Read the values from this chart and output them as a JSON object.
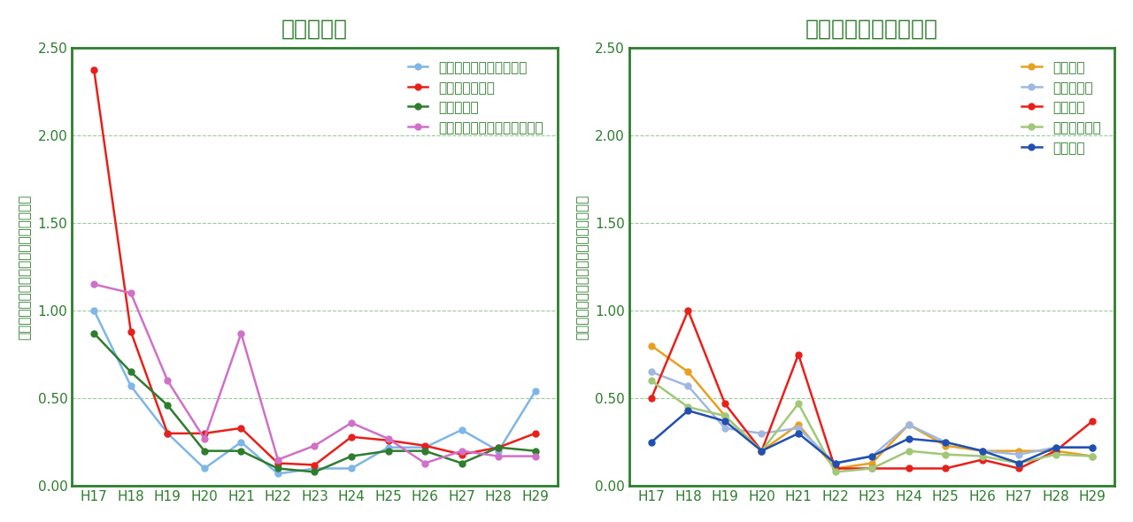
{
  "x_labels": [
    "H17",
    "H18",
    "H19",
    "H20",
    "H21",
    "H22",
    "H23",
    "H24",
    "H25",
    "H26",
    "H27",
    "H28",
    "H29"
  ],
  "left_title": "発生源周辺",
  "right_title": "バックグラウンド地域",
  "ylabel": "総繊維数濃度（本／Ｌ）（幾何平均値）",
  "ylim": [
    0.0,
    2.5
  ],
  "yticks": [
    0.0,
    0.5,
    1.0,
    1.5,
    2.0,
    2.5
  ],
  "left_series": {
    "旧石綿製品製造事業場等": {
      "color": "#7eb6e8",
      "values": [
        1.0,
        0.57,
        0.3,
        0.1,
        0.25,
        0.07,
        0.1,
        0.1,
        0.22,
        0.22,
        0.32,
        0.2,
        0.54
      ]
    },
    "廃棄物処分場等": {
      "color": "#e8201a",
      "values": [
        2.37,
        0.88,
        0.3,
        0.3,
        0.33,
        0.13,
        0.12,
        0.28,
        0.26,
        0.23,
        0.18,
        0.22,
        0.3
      ]
    },
    "蛇紋岩地域": {
      "color": "#2e7d2e",
      "values": [
        0.87,
        0.65,
        0.46,
        0.2,
        0.2,
        0.1,
        0.08,
        0.17,
        0.2,
        0.2,
        0.13,
        0.22,
        0.2
      ]
    },
    "高速道路および幹線道路沿線": {
      "color": "#d070c8",
      "values": [
        1.15,
        1.1,
        0.6,
        0.27,
        0.87,
        0.15,
        0.23,
        0.36,
        0.27,
        0.13,
        0.2,
        0.17,
        0.17
      ]
    }
  },
  "right_series": {
    "住宅地域": {
      "color": "#e8a020",
      "values": [
        0.8,
        0.65,
        0.4,
        0.2,
        0.35,
        0.1,
        0.13,
        0.35,
        0.23,
        0.2,
        0.2,
        0.2,
        0.17
      ]
    },
    "商工業地域": {
      "color": "#a0b8e0",
      "values": [
        0.65,
        0.57,
        0.33,
        0.3,
        0.33,
        0.13,
        0.17,
        0.35,
        0.25,
        0.2,
        0.18,
        0.22,
        0.22
      ]
    },
    "農業地域": {
      "color": "#e8201a",
      "values": [
        0.5,
        1.0,
        0.47,
        0.2,
        0.75,
        0.1,
        0.1,
        0.1,
        0.1,
        0.15,
        0.1,
        0.2,
        0.37
      ]
    },
    "内陸山間地域": {
      "color": "#a0c878",
      "values": [
        0.6,
        0.45,
        0.4,
        0.2,
        0.47,
        0.08,
        0.1,
        0.2,
        0.18,
        0.17,
        0.13,
        0.18,
        0.17
      ]
    },
    "離島地域": {
      "color": "#2050b0",
      "values": [
        0.25,
        0.43,
        0.37,
        0.2,
        0.3,
        0.13,
        0.17,
        0.27,
        0.25,
        0.2,
        0.13,
        0.22,
        0.22
      ]
    }
  },
  "border_color": "#2e7d2e",
  "title_color": "#2e7d2e",
  "grid_color": "#80c080",
  "tick_color": "#2e7d2e",
  "background_color": "#ffffff",
  "title_fontsize": 18,
  "label_fontsize": 11,
  "tick_fontsize": 11,
  "legend_fontsize": 11
}
